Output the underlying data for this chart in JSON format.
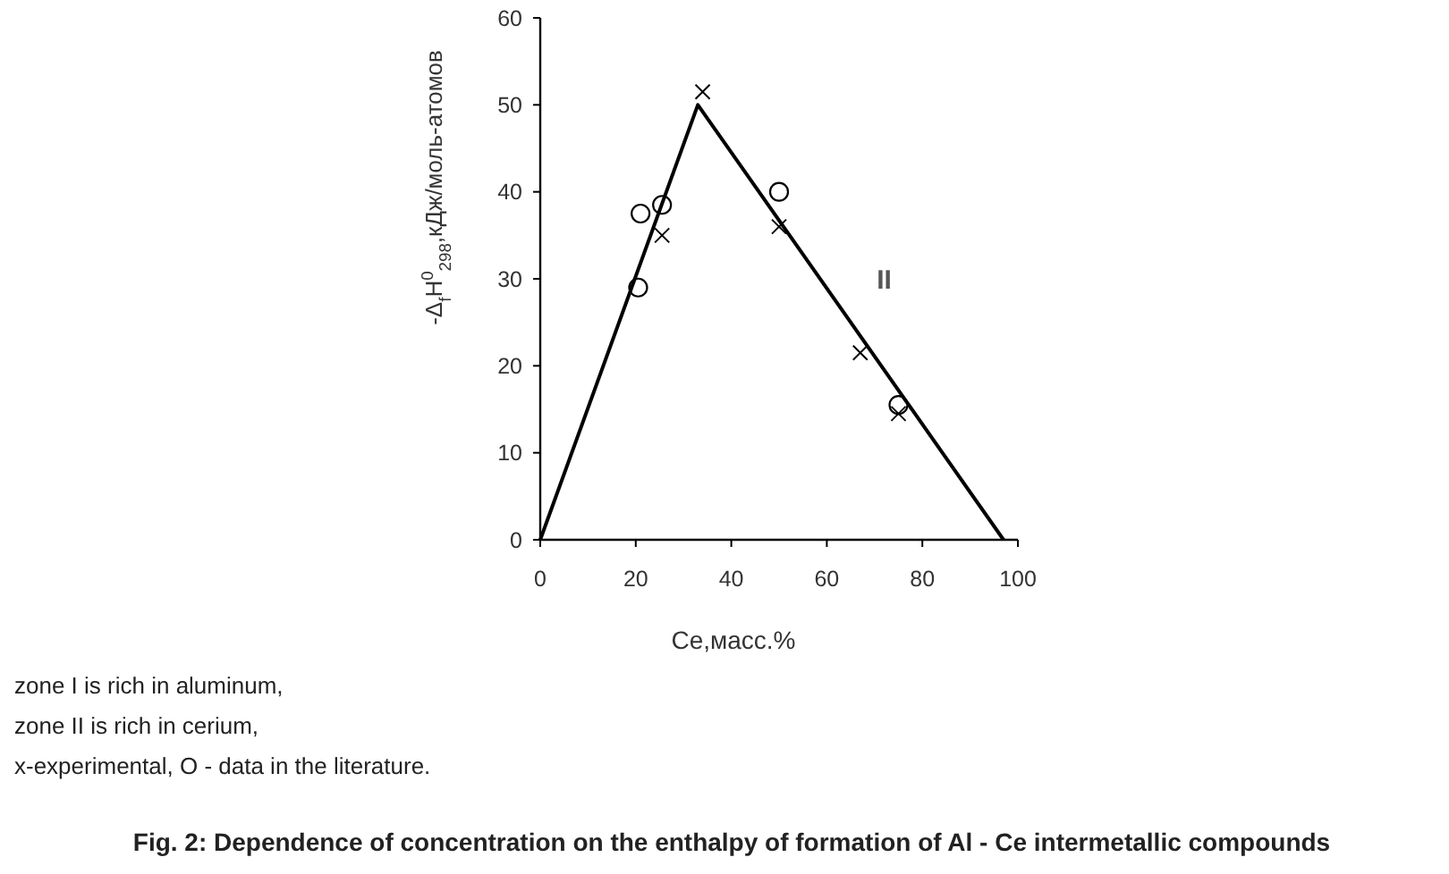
{
  "chart_data": {
    "type": "scatter",
    "title": "Fig. 2: Dependence of concentration on the enthalpy of formation of Al - Ce intermetallic compounds",
    "xlabel": "Ce,масс.%",
    "ylabel": "-Δ$_{f}$H$^{0}$$_{298}$,кДж/моль-атомов",
    "xlim": [
      0,
      100
    ],
    "ylim": [
      0,
      60
    ],
    "xticks": [
      0,
      20,
      40,
      60,
      80,
      100
    ],
    "yticks": [
      0,
      10,
      20,
      30,
      40,
      50,
      60
    ],
    "series": [
      {
        "type": "line",
        "color": "#000000",
        "line_style": "solid",
        "marker": "none",
        "x": [
          0,
          33,
          97
        ],
        "values": [
          0,
          50,
          0
        ]
      },
      {
        "color": "#000000",
        "marker": "cross",
        "x": [
          34,
          25.5,
          50,
          67,
          75
        ],
        "values": [
          51.5,
          35,
          36,
          21.5,
          14.5
        ]
      },
      {
        "color": "#000000",
        "marker": "circle",
        "x": [
          21,
          25.5,
          20.5,
          50,
          75
        ],
        "values": [
          37.5,
          38.5,
          29,
          40,
          15.5
        ]
      }
    ],
    "annotations": [
      "II",
      "zone I is rich in aluminum,",
      "zone II is rich in cerium,",
      "x-experimental, O - data in the literature."
    ]
  }
}
